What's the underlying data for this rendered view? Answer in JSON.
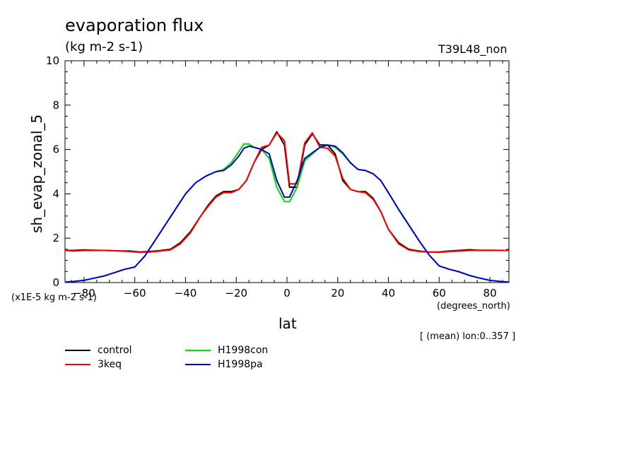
{
  "chart_data": {
    "type": "line",
    "title": "evaporation flux",
    "units_label": "(kg m-2 s-1)",
    "run_id": "T39L48_non",
    "ylabel": "sh_evap_zonal_5",
    "yscale_label": "(x1E-5 kg m-2 s-1)",
    "xlabel": "lat",
    "xunits": "(degrees_north)",
    "note": "[ (mean) lon:0..357 ]",
    "xlim": [
      -87.5,
      87.5
    ],
    "ylim": [
      0,
      10
    ],
    "xticks": [
      -80,
      -60,
      -40,
      -20,
      0,
      20,
      40,
      60,
      80
    ],
    "xtick_labels": [
      "−80",
      "−60",
      "−40",
      "−20",
      "0",
      "20",
      "40",
      "60",
      "80"
    ],
    "yticks": [
      0,
      2,
      4,
      6,
      8,
      10
    ],
    "ytick_labels": [
      "0",
      "2",
      "4",
      "6",
      "8",
      "10"
    ],
    "legend_position": "bottom-left, below plot",
    "series": [
      {
        "name": "control",
        "color": "#000000",
        "points": [
          [
            -87.5,
            1.45
          ],
          [
            -84,
            1.45
          ],
          [
            -80,
            1.47
          ],
          [
            -72,
            1.45
          ],
          [
            -66,
            1.43
          ],
          [
            -62,
            1.42
          ],
          [
            -58,
            1.38
          ],
          [
            -54,
            1.4
          ],
          [
            -50,
            1.44
          ],
          [
            -46,
            1.5
          ],
          [
            -42,
            1.8
          ],
          [
            -38,
            2.3
          ],
          [
            -34,
            3.0
          ],
          [
            -31,
            3.5
          ],
          [
            -28,
            3.9
          ],
          [
            -25,
            4.1
          ],
          [
            -22,
            4.1
          ],
          [
            -19,
            4.2
          ],
          [
            -16,
            4.6
          ],
          [
            -13,
            5.4
          ],
          [
            -10,
            6.0
          ],
          [
            -7,
            6.2
          ],
          [
            -4,
            6.8
          ],
          [
            -1,
            6.2
          ],
          [
            1,
            4.3
          ],
          [
            4,
            4.3
          ],
          [
            7,
            6.2
          ],
          [
            10,
            6.7
          ],
          [
            13,
            6.2
          ],
          [
            16,
            6.2
          ],
          [
            19,
            5.8
          ],
          [
            22,
            4.6
          ],
          [
            25,
            4.2
          ],
          [
            28,
            4.1
          ],
          [
            31,
            4.1
          ],
          [
            34,
            3.8
          ],
          [
            37,
            3.2
          ],
          [
            40,
            2.4
          ],
          [
            44,
            1.8
          ],
          [
            48,
            1.5
          ],
          [
            52,
            1.42
          ],
          [
            56,
            1.38
          ],
          [
            60,
            1.38
          ],
          [
            64,
            1.42
          ],
          [
            68,
            1.45
          ],
          [
            72,
            1.48
          ],
          [
            76,
            1.46
          ],
          [
            80,
            1.46
          ],
          [
            87.5,
            1.45
          ]
        ]
      },
      {
        "name": "3keq",
        "color": "#ff0000",
        "points": [
          [
            -87.5,
            1.45
          ],
          [
            -84,
            1.42
          ],
          [
            -80,
            1.45
          ],
          [
            -72,
            1.45
          ],
          [
            -66,
            1.42
          ],
          [
            -62,
            1.4
          ],
          [
            -58,
            1.36
          ],
          [
            -54,
            1.38
          ],
          [
            -50,
            1.42
          ],
          [
            -46,
            1.47
          ],
          [
            -42,
            1.75
          ],
          [
            -38,
            2.25
          ],
          [
            -34,
            3.0
          ],
          [
            -31,
            3.45
          ],
          [
            -28,
            3.85
          ],
          [
            -25,
            4.05
          ],
          [
            -22,
            4.05
          ],
          [
            -19,
            4.2
          ],
          [
            -16,
            4.6
          ],
          [
            -13,
            5.4
          ],
          [
            -10,
            6.1
          ],
          [
            -7,
            6.2
          ],
          [
            -4,
            6.75
          ],
          [
            -1,
            6.4
          ],
          [
            1,
            4.45
          ],
          [
            4,
            4.45
          ],
          [
            7,
            6.3
          ],
          [
            10,
            6.75
          ],
          [
            13,
            6.1
          ],
          [
            16,
            6.05
          ],
          [
            19,
            5.7
          ],
          [
            22,
            4.7
          ],
          [
            25,
            4.2
          ],
          [
            28,
            4.1
          ],
          [
            31,
            4.05
          ],
          [
            34,
            3.75
          ],
          [
            37,
            3.2
          ],
          [
            40,
            2.4
          ],
          [
            44,
            1.75
          ],
          [
            48,
            1.47
          ],
          [
            52,
            1.4
          ],
          [
            56,
            1.38
          ],
          [
            60,
            1.36
          ],
          [
            64,
            1.4
          ],
          [
            68,
            1.42
          ],
          [
            72,
            1.45
          ],
          [
            76,
            1.46
          ],
          [
            80,
            1.45
          ],
          [
            87.5,
            1.45
          ]
        ]
      },
      {
        "name": "H1998con",
        "color": "#00e000",
        "points": [
          [
            -87.5,
            0.02
          ],
          [
            -84,
            0.05
          ],
          [
            -80,
            0.1
          ],
          [
            -76,
            0.2
          ],
          [
            -72,
            0.3
          ],
          [
            -68,
            0.45
          ],
          [
            -64,
            0.6
          ],
          [
            -60,
            0.7
          ],
          [
            -56,
            1.2
          ],
          [
            -52,
            1.9
          ],
          [
            -48,
            2.6
          ],
          [
            -44,
            3.3
          ],
          [
            -40,
            4.0
          ],
          [
            -36,
            4.5
          ],
          [
            -32,
            4.8
          ],
          [
            -28,
            5.0
          ],
          [
            -25,
            5.1
          ],
          [
            -22,
            5.4
          ],
          [
            -19,
            5.9
          ],
          [
            -17,
            6.25
          ],
          [
            -15,
            6.25
          ],
          [
            -13,
            6.1
          ],
          [
            -10,
            6.0
          ],
          [
            -7,
            5.6
          ],
          [
            -4,
            4.3
          ],
          [
            -1,
            3.65
          ],
          [
            1,
            3.65
          ],
          [
            4,
            4.3
          ],
          [
            7,
            5.5
          ],
          [
            10,
            5.8
          ],
          [
            13,
            6.1
          ],
          [
            16,
            6.2
          ],
          [
            19,
            6.1
          ],
          [
            22,
            5.8
          ],
          [
            25,
            5.4
          ],
          [
            28,
            5.1
          ],
          [
            31,
            5.05
          ],
          [
            34,
            4.9
          ],
          [
            37,
            4.6
          ],
          [
            40,
            4.05
          ],
          [
            44,
            3.3
          ],
          [
            48,
            2.6
          ],
          [
            52,
            1.9
          ],
          [
            56,
            1.25
          ],
          [
            60,
            0.75
          ],
          [
            64,
            0.6
          ],
          [
            68,
            0.48
          ],
          [
            72,
            0.32
          ],
          [
            76,
            0.2
          ],
          [
            80,
            0.1
          ],
          [
            84,
            0.05
          ],
          [
            87.5,
            0.02
          ]
        ]
      },
      {
        "name": "H1998pa",
        "color": "#0000cc",
        "points": [
          [
            -87.5,
            0.02
          ],
          [
            -84,
            0.05
          ],
          [
            -80,
            0.1
          ],
          [
            -76,
            0.2
          ],
          [
            -72,
            0.3
          ],
          [
            -68,
            0.45
          ],
          [
            -64,
            0.6
          ],
          [
            -60,
            0.7
          ],
          [
            -56,
            1.2
          ],
          [
            -52,
            1.9
          ],
          [
            -48,
            2.6
          ],
          [
            -44,
            3.3
          ],
          [
            -40,
            4.0
          ],
          [
            -36,
            4.5
          ],
          [
            -32,
            4.8
          ],
          [
            -28,
            5.0
          ],
          [
            -25,
            5.05
          ],
          [
            -22,
            5.3
          ],
          [
            -19,
            5.7
          ],
          [
            -17,
            6.05
          ],
          [
            -15,
            6.15
          ],
          [
            -13,
            6.1
          ],
          [
            -10,
            6.0
          ],
          [
            -7,
            5.8
          ],
          [
            -4,
            4.6
          ],
          [
            -1,
            3.85
          ],
          [
            1,
            3.85
          ],
          [
            4,
            4.6
          ],
          [
            7,
            5.6
          ],
          [
            10,
            5.85
          ],
          [
            13,
            6.1
          ],
          [
            16,
            6.2
          ],
          [
            19,
            6.15
          ],
          [
            22,
            5.85
          ],
          [
            25,
            5.4
          ],
          [
            28,
            5.1
          ],
          [
            31,
            5.05
          ],
          [
            34,
            4.9
          ],
          [
            37,
            4.6
          ],
          [
            40,
            4.05
          ],
          [
            44,
            3.3
          ],
          [
            48,
            2.6
          ],
          [
            52,
            1.9
          ],
          [
            56,
            1.25
          ],
          [
            60,
            0.75
          ],
          [
            64,
            0.6
          ],
          [
            68,
            0.48
          ],
          [
            72,
            0.32
          ],
          [
            76,
            0.2
          ],
          [
            80,
            0.1
          ],
          [
            84,
            0.05
          ],
          [
            87.5,
            0.02
          ]
        ]
      }
    ]
  }
}
